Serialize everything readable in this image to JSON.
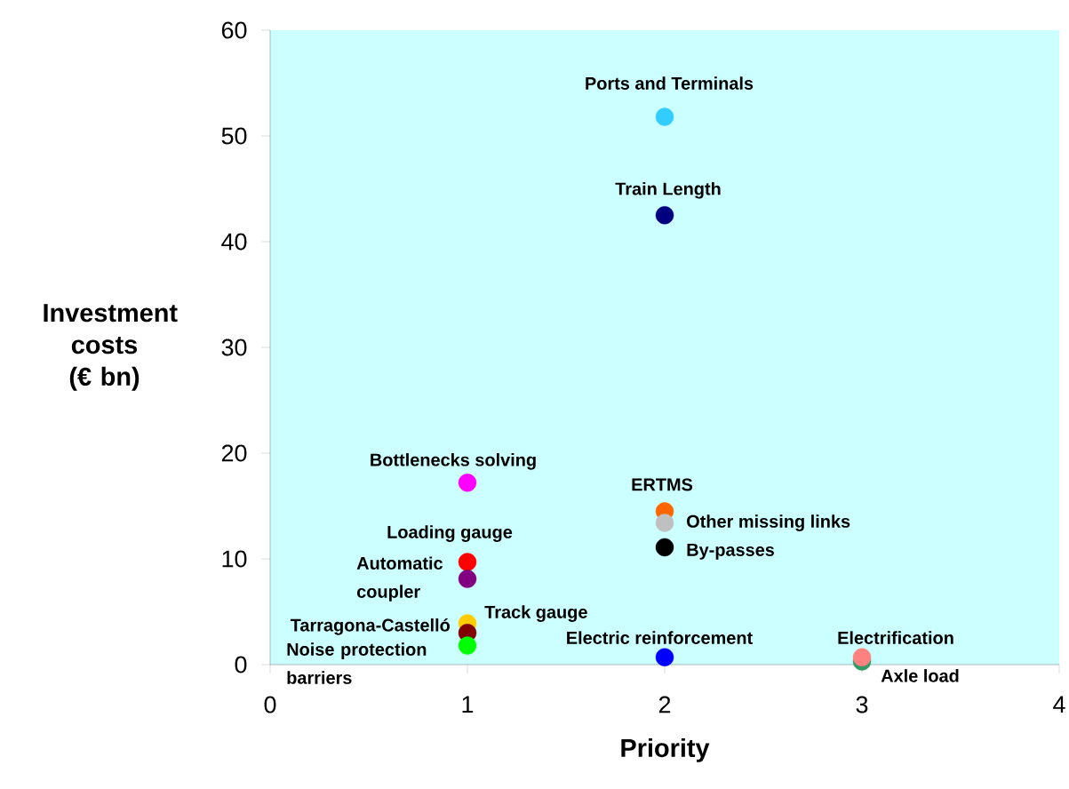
{
  "chart_data": {
    "type": "scatter",
    "xlabel": "Priority",
    "ylabel": "Investment costs (€ bn)",
    "marker": "circle",
    "xlim": [
      0,
      4
    ],
    "xticks": [
      0,
      1,
      2,
      3,
      4
    ],
    "ylim": [
      0,
      60
    ],
    "yticks": [
      0,
      10,
      20,
      30,
      40,
      50,
      60
    ],
    "series": [
      {
        "name": "Ports and Terminals",
        "color": "#33ccff",
        "x": [
          2
        ],
        "values": [
          51.8
        ]
      },
      {
        "name": "Train Length",
        "color": "#000080",
        "x": [
          2
        ],
        "values": [
          42.5
        ]
      },
      {
        "name": "Bottlenecks solving",
        "color": "#ff00ff",
        "x": [
          1
        ],
        "values": [
          17.2
        ]
      },
      {
        "name": "ERTMS",
        "color": "#ff6600",
        "x": [
          2
        ],
        "values": [
          14.5
        ]
      },
      {
        "name": "Other missing links",
        "color": "#c0c0c0",
        "x": [
          2
        ],
        "values": [
          13.4
        ]
      },
      {
        "name": "By-passes",
        "color": "#000000",
        "x": [
          2
        ],
        "values": [
          11.1
        ]
      },
      {
        "name": "Loading gauge",
        "color": "#ff0000",
        "x": [
          1
        ],
        "values": [
          9.7
        ]
      },
      {
        "name": "Automatic coupler",
        "color": "#800080",
        "x": [
          1
        ],
        "values": [
          8.1
        ]
      },
      {
        "name": "Track gauge",
        "color": "#ffcc00",
        "x": [
          1
        ],
        "values": [
          3.9
        ]
      },
      {
        "name": "Tarragona-Castelló",
        "color": "#800000",
        "x": [
          1
        ],
        "values": [
          3.0
        ]
      },
      {
        "name": "Noise protection barriers",
        "color": "#00ff00",
        "x": [
          1
        ],
        "values": [
          1.8
        ]
      },
      {
        "name": "Electric reinforcement",
        "color": "#0000ff",
        "x": [
          2
        ],
        "values": [
          0.7
        ]
      },
      {
        "name": "Axle load",
        "color": "#339966",
        "x": [
          3
        ],
        "values": [
          0.3
        ]
      },
      {
        "name": "Electrification",
        "color": "#ff8080",
        "x": [
          3
        ],
        "values": [
          0.7
        ]
      }
    ]
  }
}
